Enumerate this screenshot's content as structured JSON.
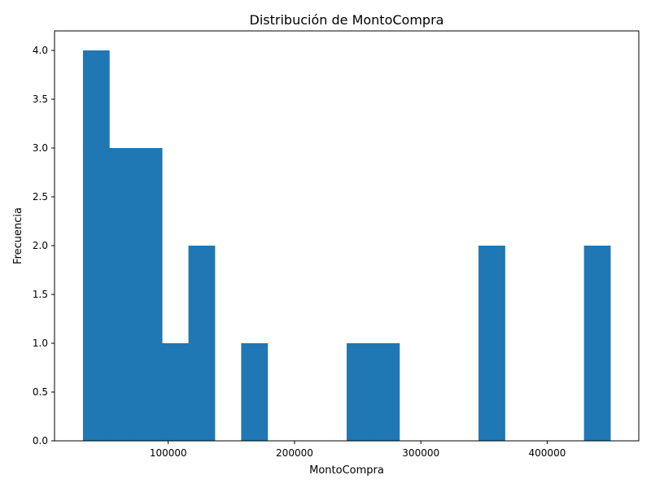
{
  "chart_data": {
    "type": "bar",
    "subtype": "histogram",
    "title": "Distribución de MontoCompra",
    "xlabel": "MontoCompra",
    "ylabel": "Frecuencia",
    "bin_range": [
      32500,
      450000
    ],
    "bins": 20,
    "counts": [
      4,
      3,
      3,
      1,
      2,
      0,
      1,
      0,
      0,
      0,
      1,
      1,
      0,
      0,
      0,
      2,
      0,
      0,
      0,
      2
    ],
    "xlim": [
      10000,
      472500
    ],
    "ylim": [
      0,
      4.2
    ],
    "xticks": [
      100000,
      200000,
      300000,
      400000
    ],
    "xtick_labels": [
      "100000",
      "200000",
      "300000",
      "400000"
    ],
    "yticks": [
      0,
      0.5,
      1,
      1.5,
      2,
      2.5,
      3,
      3.5,
      4
    ],
    "ytick_labels": [
      "0.0",
      "0.5",
      "1.0",
      "1.5",
      "2.0",
      "2.5",
      "3.0",
      "3.5",
      "4.0"
    ],
    "bar_color": "#1f77b4",
    "grid": false,
    "legend": "none"
  }
}
